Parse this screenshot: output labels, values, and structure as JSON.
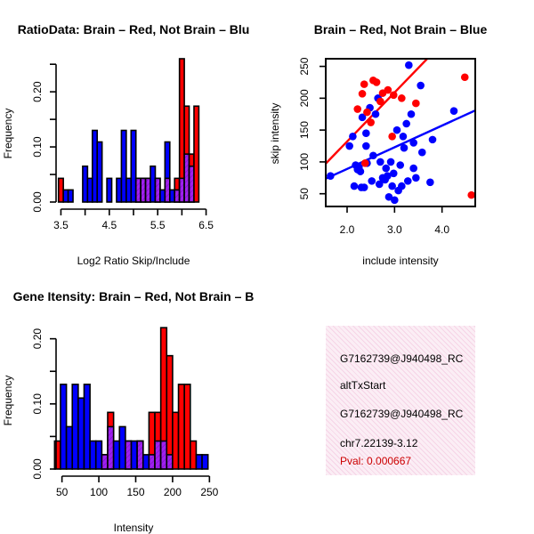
{
  "colors": {
    "red": "#ff0000",
    "blue": "#0000ff",
    "purple": "#a020f0",
    "axis": "#000000"
  },
  "chart_data": [
    {
      "type": "histogram",
      "title": "RatioData: Brain – Red, Not Brain – Blu",
      "xlabel": "Log2 Ratio Skip/Include",
      "ylabel": "Frequency",
      "xlim": [
        3.4,
        6.6
      ],
      "ylim": [
        0,
        0.26
      ],
      "xticks": [
        "3.5",
        "4.0",
        "4.5",
        "5.0",
        "5.5",
        "6.0",
        "6.5"
      ],
      "xtick_values": [
        3.5,
        4.0,
        4.5,
        5.0,
        5.5,
        6.0,
        6.5
      ],
      "yticks": [
        "0.00",
        "0.10",
        "0.20"
      ],
      "ytick_values": [
        0.0,
        0.1,
        0.2
      ],
      "bin_starts": [
        3.45,
        3.55,
        3.65,
        3.75,
        3.85,
        3.95,
        4.05,
        4.15,
        4.25,
        4.35,
        4.45,
        4.55,
        4.65,
        4.75,
        4.85,
        4.95,
        5.05,
        5.15,
        5.25,
        5.35,
        5.45,
        5.55,
        5.65,
        5.75,
        5.85,
        5.95,
        6.05,
        6.15,
        6.25,
        6.35
      ],
      "bin_width": 0.1,
      "series": [
        {
          "name": "Brain",
          "color": "red",
          "values": [
            0.043,
            0,
            0,
            0,
            0,
            0,
            0,
            0,
            0,
            0,
            0,
            0,
            0,
            0,
            0,
            0,
            0.043,
            0.043,
            0.043,
            0,
            0.043,
            0,
            0.043,
            0,
            0.043,
            0.26,
            0.174,
            0.087,
            0.174,
            0
          ]
        },
        {
          "name": "Not Brain",
          "color": "blue",
          "values": [
            0,
            0.022,
            0.022,
            0,
            0,
            0.065,
            0.043,
            0.13,
            0.109,
            0,
            0.043,
            0,
            0.043,
            0.13,
            0.043,
            0.13,
            0.043,
            0.043,
            0.043,
            0.065,
            0.043,
            0.022,
            0.109,
            0.022,
            0.022,
            0.043,
            0.087,
            0.065,
            0,
            0
          ]
        }
      ]
    },
    {
      "type": "scatter",
      "title": "Brain – Red, Not Brain – Blue",
      "xlabel": "include intensity",
      "ylabel": "skip intensity",
      "xlim": [
        1.55,
        4.7
      ],
      "ylim": [
        30,
        262
      ],
      "xticks": [
        "2.0",
        "3.0",
        "4.0"
      ],
      "xtick_values": [
        2.0,
        3.0,
        4.0
      ],
      "yticks": [
        "50",
        "100",
        "150",
        "200",
        "250"
      ],
      "ytick_values": [
        50,
        100,
        150,
        200,
        250
      ],
      "series": [
        {
          "name": "Brain",
          "color": "red",
          "regression": {
            "intercept": -22,
            "slope": 77
          },
          "points": [
            [
              2.22,
              183
            ],
            [
              2.32,
              207
            ],
            [
              2.36,
              222
            ],
            [
              2.42,
              178
            ],
            [
              2.5,
              162
            ],
            [
              2.55,
              228
            ],
            [
              2.62,
              225
            ],
            [
              2.75,
              208
            ],
            [
              2.86,
              213
            ],
            [
              2.7,
              195
            ],
            [
              2.98,
              205
            ],
            [
              3.15,
              200
            ],
            [
              3.45,
              192
            ],
            [
              2.95,
              140
            ],
            [
              2.38,
              98
            ],
            [
              4.48,
              233
            ],
            [
              4.62,
              48
            ]
          ]
        },
        {
          "name": "Not Brain",
          "color": "blue",
          "regression": {
            "intercept": 21,
            "slope": 34
          },
          "points": [
            [
              1.65,
              78
            ],
            [
              2.05,
              125
            ],
            [
              2.12,
              140
            ],
            [
              2.15,
              62
            ],
            [
              2.22,
              88
            ],
            [
              2.25,
              92
            ],
            [
              2.28,
              85
            ],
            [
              2.3,
              60
            ],
            [
              2.32,
              170
            ],
            [
              2.36,
              60
            ],
            [
              2.4,
              145
            ],
            [
              2.42,
              98
            ],
            [
              2.48,
              185
            ],
            [
              2.52,
              70
            ],
            [
              2.55,
              110
            ],
            [
              2.6,
              175
            ],
            [
              2.68,
              65
            ],
            [
              2.7,
              100
            ],
            [
              2.75,
              75
            ],
            [
              2.8,
              72
            ],
            [
              2.82,
              90
            ],
            [
              2.85,
              78
            ],
            [
              2.88,
              45
            ],
            [
              2.92,
              100
            ],
            [
              2.95,
              62
            ],
            [
              2.98,
              82
            ],
            [
              3.0,
              40
            ],
            [
              3.05,
              150
            ],
            [
              3.08,
              55
            ],
            [
              3.12,
              95
            ],
            [
              3.15,
              62
            ],
            [
              3.18,
              140
            ],
            [
              3.2,
              122
            ],
            [
              3.25,
              160
            ],
            [
              3.28,
              70
            ],
            [
              3.3,
              252
            ],
            [
              3.35,
              175
            ],
            [
              3.4,
              90
            ],
            [
              3.45,
              75
            ],
            [
              3.55,
              220
            ],
            [
              3.58,
              115
            ],
            [
              3.75,
              68
            ],
            [
              3.8,
              135
            ],
            [
              4.25,
              180
            ],
            [
              2.65,
              200
            ],
            [
              3.4,
              130
            ],
            [
              2.18,
              95
            ],
            [
              2.4,
              125
            ]
          ]
        }
      ]
    },
    {
      "type": "histogram",
      "title": "Gene Itensity: Brain – Red, Not Brain – B",
      "xlabel": "Intensity",
      "ylabel": "Frequency",
      "xlim": [
        42,
        252
      ],
      "ylim": [
        0,
        0.22
      ],
      "xticks": [
        "50",
        "100",
        "150",
        "200",
        "250"
      ],
      "xtick_values": [
        50,
        100,
        150,
        200,
        250
      ],
      "yticks": [
        "0.00",
        "0.10",
        "0.20"
      ],
      "ytick_values": [
        0.0,
        0.1,
        0.2
      ],
      "bin_starts": [
        40,
        48,
        56,
        64,
        72,
        80,
        88,
        96,
        104,
        112,
        120,
        128,
        136,
        144,
        152,
        160,
        168,
        176,
        184,
        192,
        200,
        208,
        216,
        224,
        232,
        240
      ],
      "bin_width": 8,
      "series": [
        {
          "name": "Brain",
          "color": "red",
          "values": [
            0.043,
            0,
            0,
            0,
            0,
            0,
            0,
            0,
            0.022,
            0.087,
            0,
            0,
            0.043,
            0,
            0.043,
            0,
            0.087,
            0.087,
            0.217,
            0.174,
            0.087,
            0.13,
            0.13,
            0.043,
            0,
            0
          ]
        },
        {
          "name": "Not Brain",
          "color": "blue",
          "values": [
            0,
            0.13,
            0.065,
            0.13,
            0.109,
            0.13,
            0.043,
            0.043,
            0.022,
            0.065,
            0.043,
            0.065,
            0.043,
            0.043,
            0.043,
            0.022,
            0.022,
            0.043,
            0.043,
            0.022,
            0,
            0,
            0,
            0,
            0.022,
            0.022
          ]
        }
      ]
    }
  ],
  "info": {
    "line1": "G7162739@J940498_RC",
    "line2": "altTxStart",
    "line3": "G7162739@J940498_RC",
    "line4": "chr7.22139-3.12",
    "pval": "Pval: 0.000667",
    "pval_color": "#cc0000"
  }
}
